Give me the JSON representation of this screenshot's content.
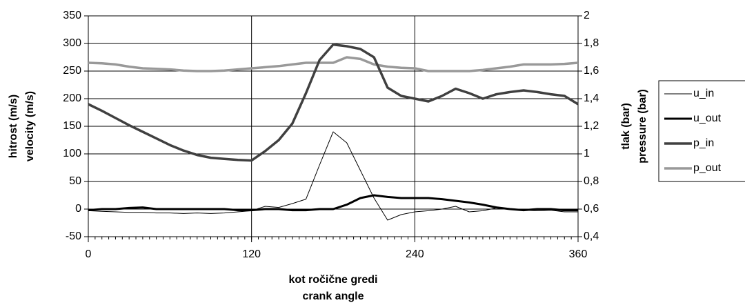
{
  "chart_data": {
    "type": "line",
    "xlabel": [
      "kot ročične gredi",
      "crank angle"
    ],
    "ylabel": [
      "hitrost (m/s)",
      "velocity (m/s)"
    ],
    "y2label": [
      "tlak (bar)",
      "pressure (bar)"
    ],
    "x": [
      0,
      10,
      20,
      30,
      40,
      50,
      60,
      70,
      80,
      90,
      100,
      110,
      120,
      130,
      140,
      150,
      160,
      170,
      180,
      190,
      200,
      210,
      220,
      230,
      240,
      250,
      260,
      270,
      280,
      290,
      300,
      310,
      320,
      330,
      340,
      350,
      360
    ],
    "xlim": [
      0,
      360
    ],
    "xticks": [
      0,
      120,
      240,
      360
    ],
    "ylim": [
      -50,
      350
    ],
    "yticks": [
      -50,
      0,
      50,
      100,
      150,
      200,
      250,
      300,
      350
    ],
    "y2lim": [
      0.4,
      2
    ],
    "y2ticks": [
      {
        "value": 0.4,
        "label": "0,4"
      },
      {
        "value": 0.6,
        "label": "0,6"
      },
      {
        "value": 0.8,
        "label": "0,8"
      },
      1,
      {
        "value": 1.2,
        "label": "1,2"
      },
      {
        "value": 1.4,
        "label": "1,4"
      },
      {
        "value": 1.6,
        "label": "1,6"
      },
      {
        "value": 1.8,
        "label": "1,8"
      },
      2
    ],
    "grid": true,
    "legend": "right",
    "series": [
      {
        "name": "u_in",
        "color": "#000000",
        "width": 1,
        "values": [
          -3,
          -4,
          -5,
          -6,
          -6,
          -7,
          -7,
          -8,
          -7,
          -8,
          -7,
          -5,
          -3,
          5,
          3,
          10,
          18,
          80,
          140,
          120,
          70,
          20,
          -20,
          -10,
          -5,
          -3,
          0,
          5,
          -5,
          -3,
          2,
          0,
          -2,
          -3,
          -2,
          -5,
          -5
        ]
      },
      {
        "name": "u_out",
        "color": "#000000",
        "width": 3,
        "values": [
          -2,
          0,
          0,
          2,
          3,
          0,
          0,
          0,
          0,
          0,
          0,
          -2,
          -2,
          0,
          0,
          -2,
          -2,
          0,
          0,
          8,
          20,
          25,
          22,
          20,
          20,
          20,
          18,
          15,
          12,
          8,
          3,
          0,
          -2,
          0,
          0,
          -2,
          -2
        ]
      },
      {
        "name": "p_in",
        "color": "#404040",
        "width": 3.5,
        "axis": "y2",
        "values": [
          1.36,
          1.312,
          1.26,
          1.208,
          1.16,
          1.112,
          1.064,
          1.024,
          0.992,
          0.972,
          0.964,
          0.956,
          0.952,
          1.02,
          1.1,
          1.22,
          1.44,
          1.68,
          1.792,
          1.78,
          1.76,
          1.7,
          1.48,
          1.42,
          1.4,
          1.38,
          1.42,
          1.472,
          1.44,
          1.4,
          1.432,
          1.448,
          1.46,
          1.448,
          1.432,
          1.42,
          1.36
        ]
      },
      {
        "name": "p_out",
        "color": "#999999",
        "width": 3.5,
        "axis": "y2",
        "values": [
          1.66,
          1.656,
          1.648,
          1.632,
          1.62,
          1.616,
          1.612,
          1.604,
          1.6,
          1.6,
          1.604,
          1.612,
          1.62,
          1.628,
          1.636,
          1.648,
          1.66,
          1.66,
          1.66,
          1.7,
          1.688,
          1.648,
          1.632,
          1.624,
          1.62,
          1.6,
          1.6,
          1.6,
          1.6,
          1.608,
          1.62,
          1.632,
          1.648,
          1.648,
          1.648,
          1.652,
          1.66
        ]
      }
    ]
  }
}
